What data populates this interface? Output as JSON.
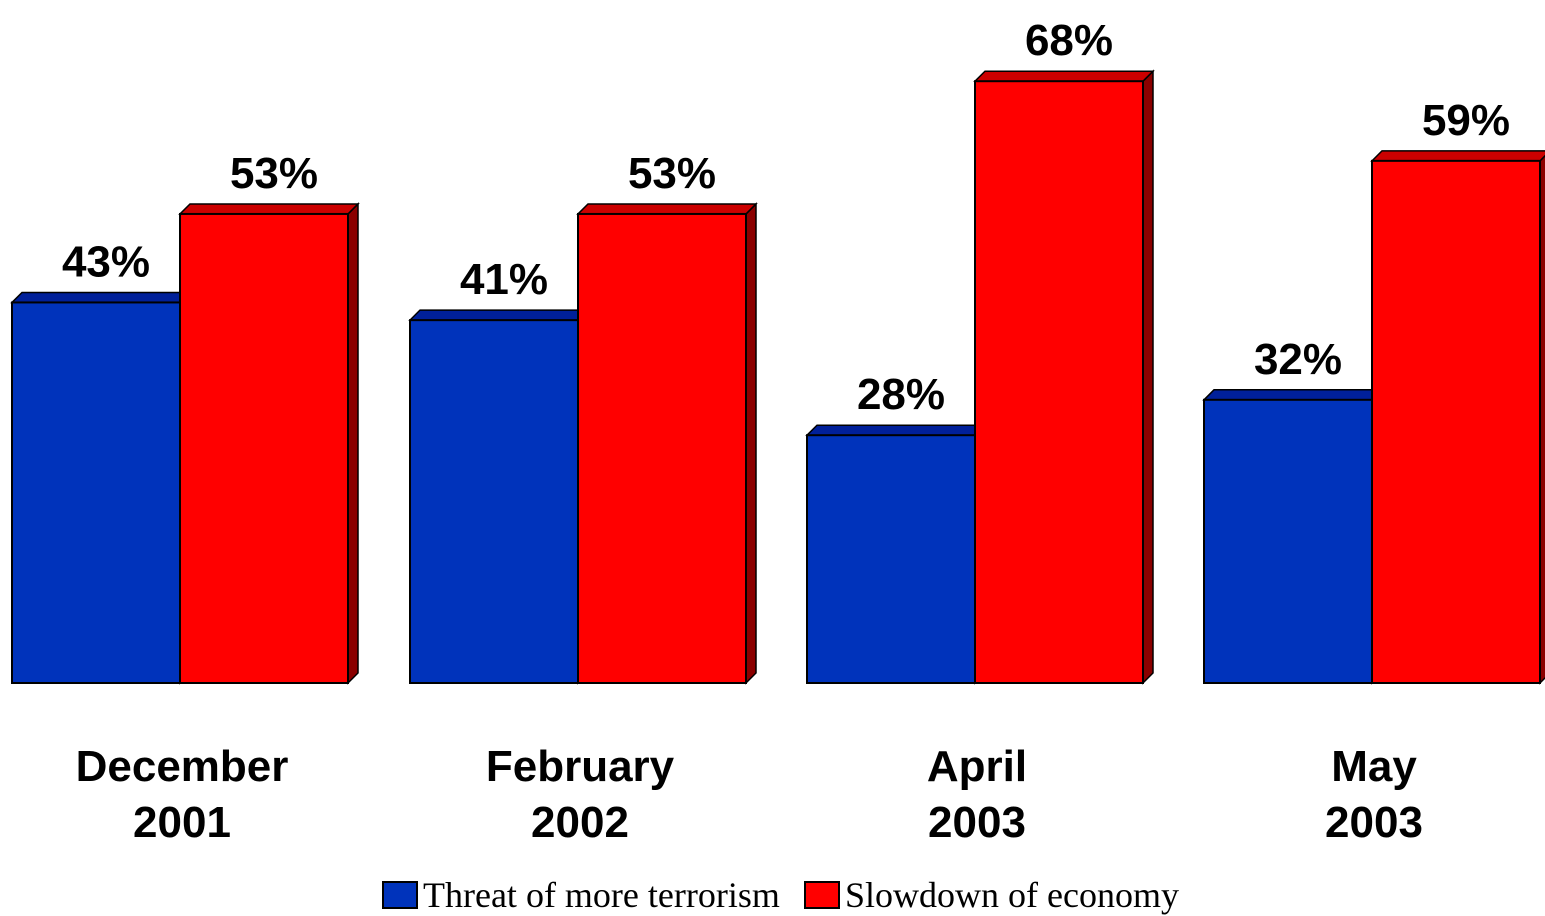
{
  "chart_data": {
    "type": "bar",
    "categories": [
      [
        "December",
        "2001"
      ],
      [
        "February",
        "2002"
      ],
      [
        "April",
        "2003"
      ],
      [
        "May",
        "2003"
      ]
    ],
    "series": [
      {
        "name": "Threat of more terrorism",
        "values": [
          43,
          41,
          28,
          32
        ],
        "labels": [
          "43%",
          "41%",
          "28%",
          "32%"
        ],
        "color": "#0033BB",
        "top_color": "#00209A",
        "side_color": "#001A80"
      },
      {
        "name": "Slowdown of economy",
        "values": [
          53,
          53,
          68,
          59
        ],
        "labels": [
          "53%",
          "53%",
          "68%",
          "59%"
        ],
        "color": "#FF0000",
        "top_color": "#CC0000",
        "side_color": "#8B0000"
      }
    ],
    "ylim": [
      0,
      100
    ],
    "grid": false,
    "legend_position": "bottom-center"
  }
}
